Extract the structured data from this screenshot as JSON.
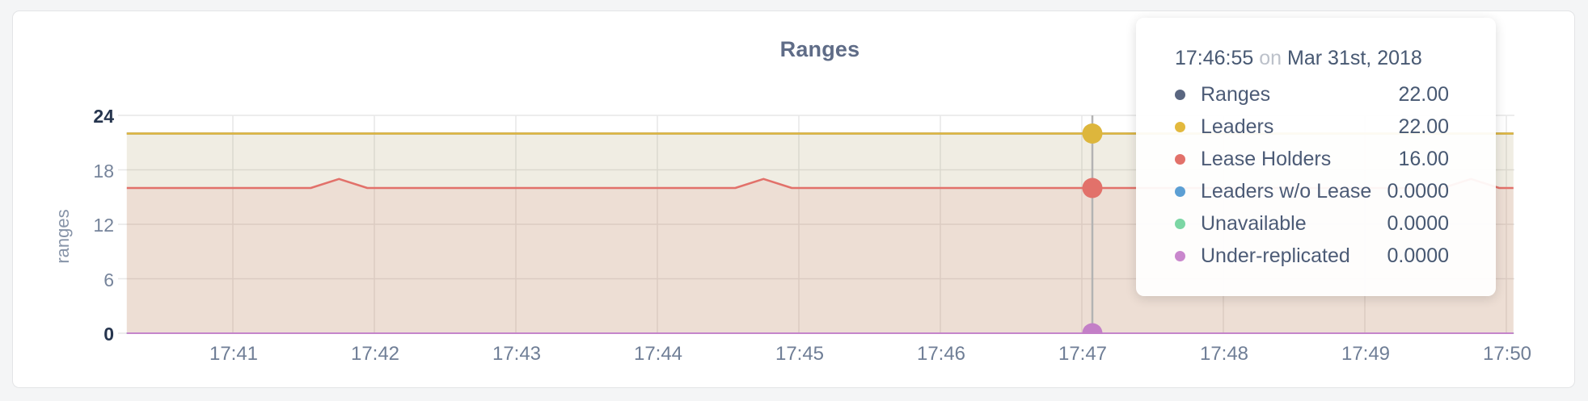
{
  "card_title": "Ranges",
  "tooltip": {
    "time": "17:46:55",
    "preposition": "on",
    "date": "Mar 31st, 2018",
    "rows": [
      {
        "label": "Ranges",
        "value": "22.00",
        "color": "#5a6680"
      },
      {
        "label": "Leaders",
        "value": "22.00",
        "color": "#e3b93d"
      },
      {
        "label": "Lease Holders",
        "value": "16.00",
        "color": "#e2716a"
      },
      {
        "label": "Leaders w/o Lease",
        "value": "0.0000",
        "color": "#5c9fd4"
      },
      {
        "label": "Unavailable",
        "value": "0.0000",
        "color": "#7bd6a4"
      },
      {
        "label": "Under-replicated",
        "value": "0.0000",
        "color": "#c987cd"
      }
    ]
  },
  "chart_data": {
    "type": "area",
    "title": "Ranges",
    "xlabel": "",
    "ylabel": "ranges",
    "ylim": [
      0,
      24
    ],
    "y_ticks": [
      0,
      6,
      12,
      18,
      24
    ],
    "x_ticks": [
      "17:41",
      "17:42",
      "17:43",
      "17:44",
      "17:45",
      "17:46",
      "17:47",
      "17:48",
      "17:49",
      "17:50"
    ],
    "x_domain": [
      "17:40:15",
      "17:50:03"
    ],
    "grid": "on",
    "legend_position": "tooltip-overlay",
    "series": [
      {
        "name": "Ranges",
        "color": "#5f6c87",
        "fill": "rgba(95,108,135,0.08)",
        "line_width": 2.5,
        "points": [
          [
            "17:40:15",
            22
          ],
          [
            "17:50:03",
            22
          ]
        ]
      },
      {
        "name": "Leaders",
        "color": "#e0b73e",
        "fill": "rgba(224,183,62,0.10)",
        "line_width": 2.5,
        "points": [
          [
            "17:40:15",
            22
          ],
          [
            "17:50:03",
            22
          ]
        ]
      },
      {
        "name": "Lease Holders",
        "color": "#e2716a",
        "fill": "rgba(226,113,106,0.12)",
        "line_width": 2.5,
        "points": [
          [
            "17:40:15",
            16
          ],
          [
            "17:41:33",
            16
          ],
          [
            "17:41:45",
            17
          ],
          [
            "17:41:57",
            16
          ],
          [
            "17:44:33",
            16
          ],
          [
            "17:44:45",
            17
          ],
          [
            "17:44:57",
            16
          ],
          [
            "17:49:33",
            16
          ],
          [
            "17:49:45",
            17
          ],
          [
            "17:49:57",
            16
          ],
          [
            "17:50:03",
            16
          ]
        ]
      },
      {
        "name": "Leaders w/o Lease",
        "color": "#5c9fd4",
        "fill": "none",
        "line_width": 2,
        "points": [
          [
            "17:40:15",
            0
          ],
          [
            "17:50:03",
            0
          ]
        ]
      },
      {
        "name": "Unavailable",
        "color": "#7bd6a4",
        "fill": "none",
        "line_width": 2,
        "points": [
          [
            "17:40:15",
            0
          ],
          [
            "17:50:03",
            0
          ]
        ]
      },
      {
        "name": "Under-replicated",
        "color": "#c485cb",
        "fill": "none",
        "line_width": 2,
        "points": [
          [
            "17:40:15",
            0
          ],
          [
            "17:50:03",
            0
          ]
        ]
      }
    ],
    "hover": {
      "time": "17:46:55",
      "points": [
        {
          "series": "Leaders",
          "value": 22,
          "color": "#ddb63c"
        },
        {
          "series": "Lease Holders",
          "value": 16,
          "color": "#e2716a"
        },
        {
          "series": "Under-replicated",
          "value": 0,
          "color": "#c37fc7"
        }
      ]
    }
  }
}
